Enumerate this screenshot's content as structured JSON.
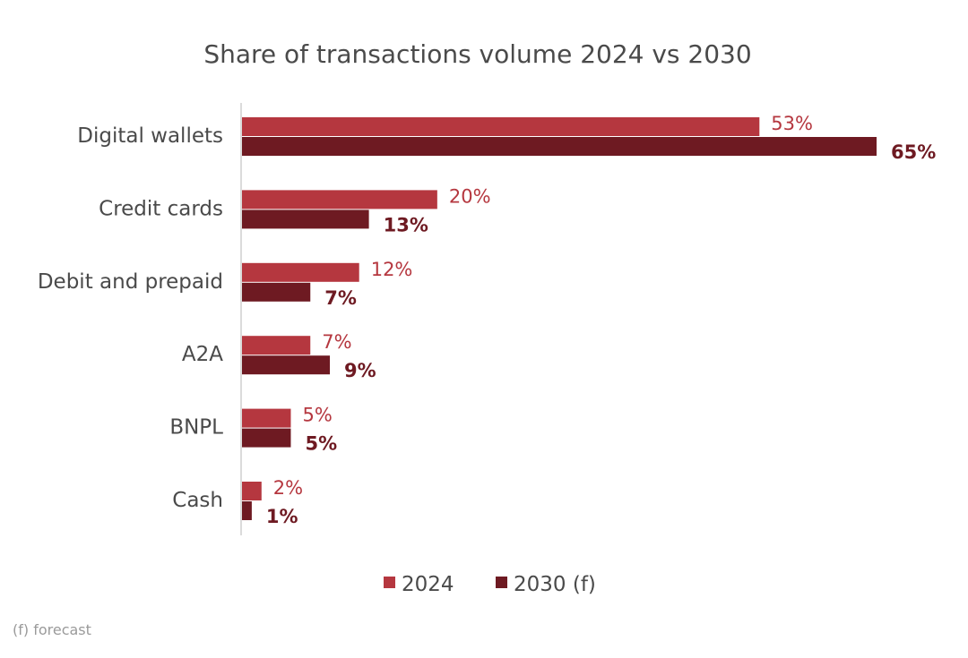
{
  "chart_data": {
    "type": "bar",
    "orientation": "horizontal",
    "title": "Share of transactions volume 2024 vs 2030",
    "categories": [
      "Digital wallets",
      "Credit cards",
      "Debit and prepaid",
      "A2A",
      "BNPL",
      "Cash"
    ],
    "series": [
      {
        "name": "2024",
        "values": [
          53,
          20,
          12,
          7,
          5,
          2
        ],
        "labels": [
          "53%",
          "20%",
          "12%",
          "7%",
          "5%",
          "2%"
        ]
      },
      {
        "name": "2030 (f)",
        "values": [
          65,
          13,
          7,
          9,
          5,
          1
        ],
        "labels": [
          "65%",
          "13%",
          "7%",
          "9%",
          "5%",
          "1%"
        ]
      }
    ],
    "xlim": [
      0,
      65
    ],
    "xlabel": "",
    "ylabel": "",
    "grid": false,
    "legend_position": "bottom",
    "colors": {
      "2024": "#b5373f",
      "2030": "#6e1a22"
    }
  },
  "footnote": "(f) forecast"
}
